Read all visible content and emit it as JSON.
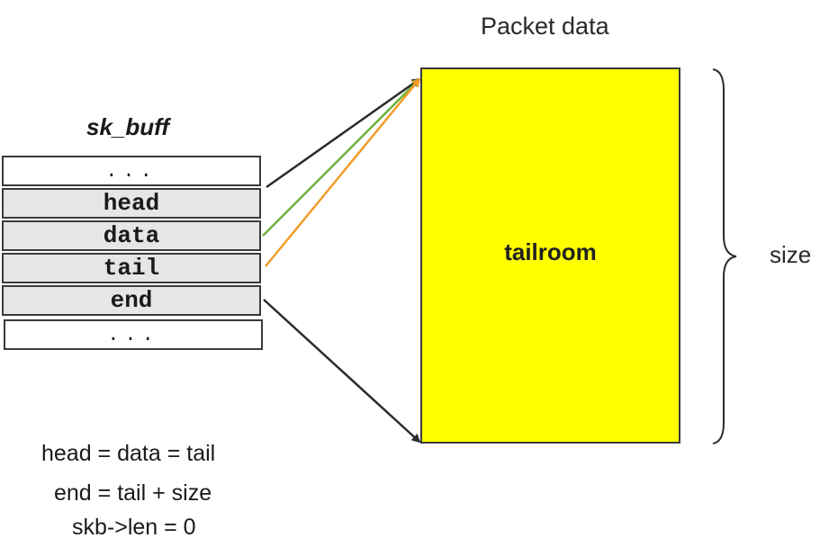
{
  "diagram": {
    "packet_title": "Packet data",
    "struct_title": "sk_buff",
    "struct_rows": [
      {
        "label": "...",
        "kind": "ellipsis"
      },
      {
        "label": "head",
        "kind": "field"
      },
      {
        "label": "data",
        "kind": "field"
      },
      {
        "label": "tail",
        "kind": "field"
      },
      {
        "label": "end",
        "kind": "field"
      },
      {
        "label": "...",
        "kind": "ellipsis"
      }
    ],
    "packet_region_label": "tailroom",
    "size_label": "size",
    "equations": [
      "head = data = tail",
      "end = tail + size",
      "skb->len = 0"
    ],
    "colors": {
      "packet_fill": "#ffff00",
      "head_arrow": "#2b2b2b",
      "data_arrow": "#6bb33a",
      "tail_arrow": "#f29c2b",
      "end_arrow": "#2b2b2b"
    }
  }
}
